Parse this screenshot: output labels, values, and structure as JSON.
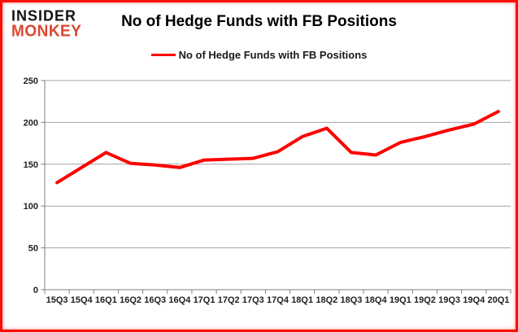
{
  "header": {
    "logo_line1": "INSIDER",
    "logo_line2": "MONKEY",
    "title": "No of Hedge Funds with FB Positions"
  },
  "legend": {
    "label": "No of Hedge Funds with FB Positions"
  },
  "colors": {
    "series_line": "#fe0000",
    "legend_swatch": "#fe0000",
    "logo_primary": "#151210",
    "logo_accent": "#dc4732",
    "frame_border": "#fb0d09",
    "gridline": "#a3a3a3",
    "axis": "#7f7f7f",
    "tick_label": "#1f1f1f"
  },
  "chart_data": {
    "type": "line",
    "title": "No of Hedge Funds with FB Positions",
    "categories": [
      "15Q3",
      "15Q4",
      "16Q1",
      "16Q2",
      "16Q3",
      "16Q4",
      "17Q1",
      "17Q2",
      "17Q3",
      "17Q4",
      "18Q1",
      "18Q2",
      "18Q3",
      "18Q4",
      "19Q1",
      "19Q2",
      "19Q3",
      "19Q4",
      "20Q1"
    ],
    "series": [
      {
        "name": "No of Hedge Funds with FB Positions",
        "color": "#fe0000",
        "values": [
          128,
          146,
          164,
          151,
          149,
          146,
          155,
          156,
          157,
          165,
          183,
          193,
          164,
          161,
          176,
          183,
          191,
          198,
          213
        ]
      }
    ],
    "xlabel": "",
    "ylabel": "",
    "ylim": [
      0,
      250
    ],
    "ytick_step": 50,
    "ytick_labels": [
      "0",
      "50",
      "100",
      "150",
      "200",
      "250"
    ],
    "grid": true,
    "legend_position": "top-center"
  }
}
